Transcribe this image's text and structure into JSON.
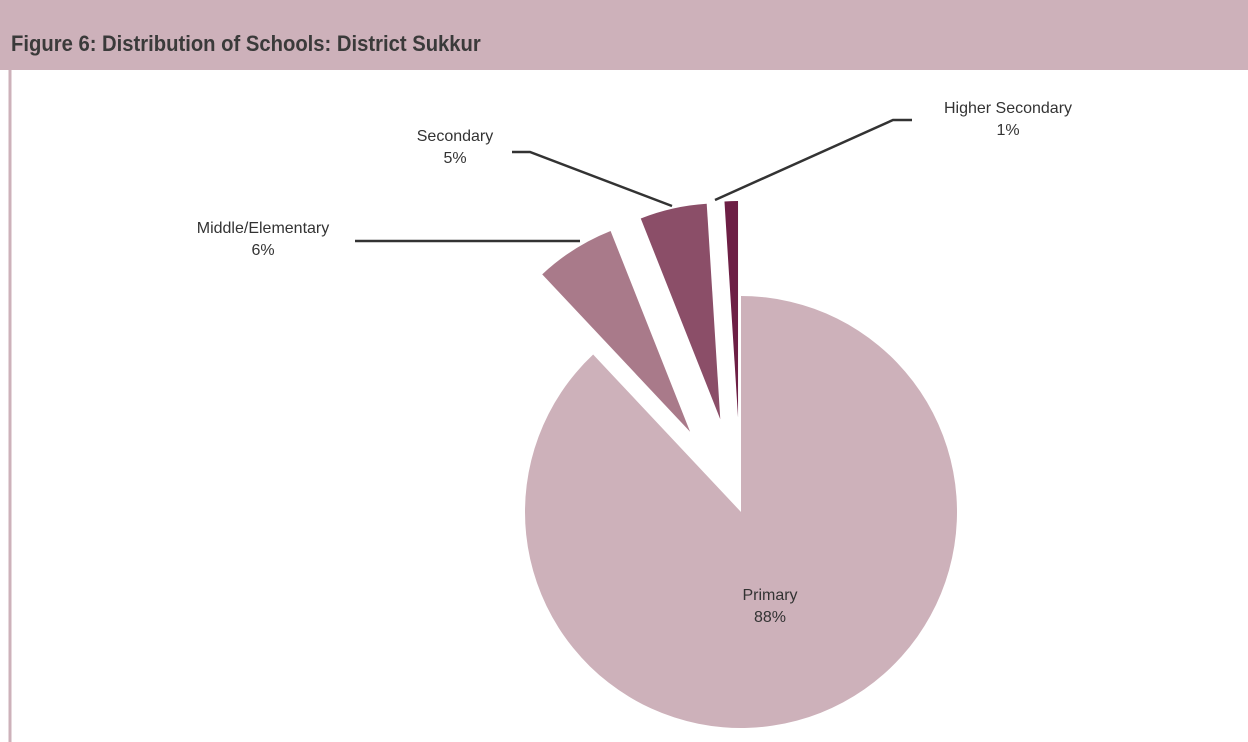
{
  "chart_data": {
    "type": "pie",
    "title": "Figure 6: Distribution of Schools: District Sukkur",
    "categories": [
      "Primary",
      "Middle/Elementary",
      "Secondary",
      "Higher Secondary"
    ],
    "values": [
      88,
      6,
      5,
      1
    ],
    "value_labels": [
      "88%",
      "6%",
      "5%",
      "1%"
    ],
    "colors": [
      "#cdb1ba",
      "#a97a8a",
      "#8b4e68",
      "#6d1f45"
    ]
  }
}
